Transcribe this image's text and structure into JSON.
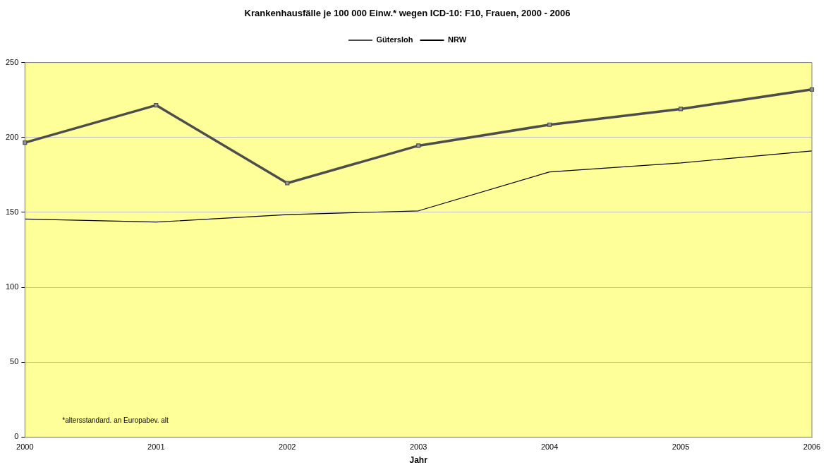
{
  "chart_data": {
    "type": "line",
    "title": "Krankenhausfälle je 100 000 Einw.* wegen ICD-10: F10, Frauen, 2000 - 2006",
    "xlabel": "Jahr",
    "categories": [
      "2000",
      "2001",
      "2002",
      "2003",
      "2004",
      "2005",
      "2006"
    ],
    "series": [
      {
        "name": "Gütersloh",
        "color": "#4d4d4d",
        "marker": "square",
        "values": [
          196.5,
          221.5,
          169.5,
          194.5,
          208.5,
          219,
          232
        ]
      },
      {
        "name": "NRW",
        "color": "#000000",
        "marker": "none",
        "values": [
          145.5,
          143.5,
          148.5,
          151,
          177,
          183,
          191
        ]
      }
    ],
    "ylim": [
      0,
      250
    ],
    "yticks": [
      0,
      50,
      100,
      150,
      200,
      250
    ],
    "grid": "y",
    "legend": "top",
    "annotations": [
      "*altersstandard. an Europabev. alt"
    ]
  }
}
